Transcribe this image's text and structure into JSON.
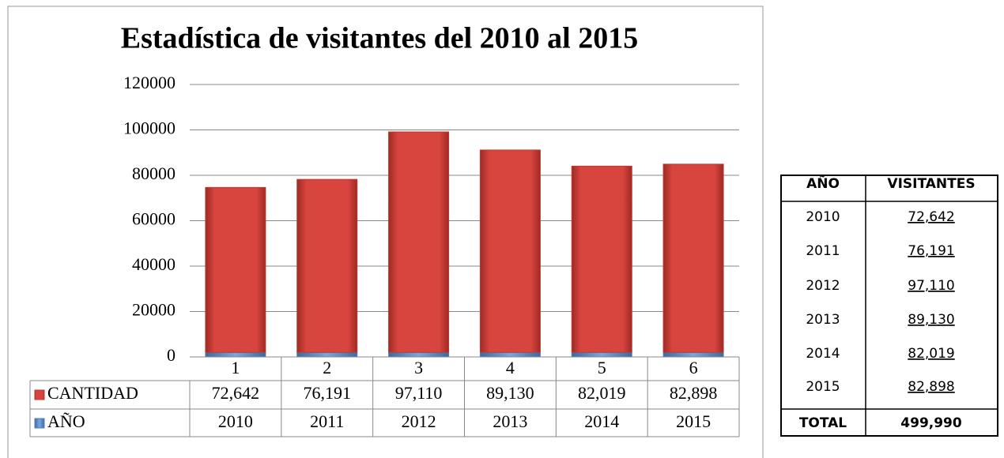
{
  "chart_data": {
    "type": "bar",
    "stacked": true,
    "title": "Estadística de visitantes del 2010 al 2015",
    "categories": [
      "1",
      "2",
      "3",
      "4",
      "5",
      "6"
    ],
    "series": [
      {
        "name": "AÑO",
        "color": "#4f81bd",
        "values": [
          2010,
          2011,
          2012,
          2013,
          2014,
          2015
        ]
      },
      {
        "name": "CANTIDAD",
        "color": "#c0392f",
        "values": [
          72642,
          76191,
          97110,
          89130,
          82019,
          82898
        ],
        "value_labels": [
          "72,642",
          "76,191",
          "97,110",
          "89,130",
          "82,019",
          "82,898"
        ]
      }
    ],
    "ylim": [
      0,
      120000
    ],
    "yticks": [
      0,
      20000,
      40000,
      60000,
      80000,
      100000,
      120000
    ],
    "grid": true
  },
  "table": {
    "header": [
      "AÑO",
      "VISITANTES"
    ],
    "rows": [
      [
        "2010",
        "72,642"
      ],
      [
        "2011",
        "76,191"
      ],
      [
        "2012",
        "97,110"
      ],
      [
        "2013",
        "89,130"
      ],
      [
        "2014",
        "82,019"
      ],
      [
        "2015",
        "82,898"
      ]
    ],
    "total": [
      "TOTAL",
      "499,990"
    ]
  }
}
